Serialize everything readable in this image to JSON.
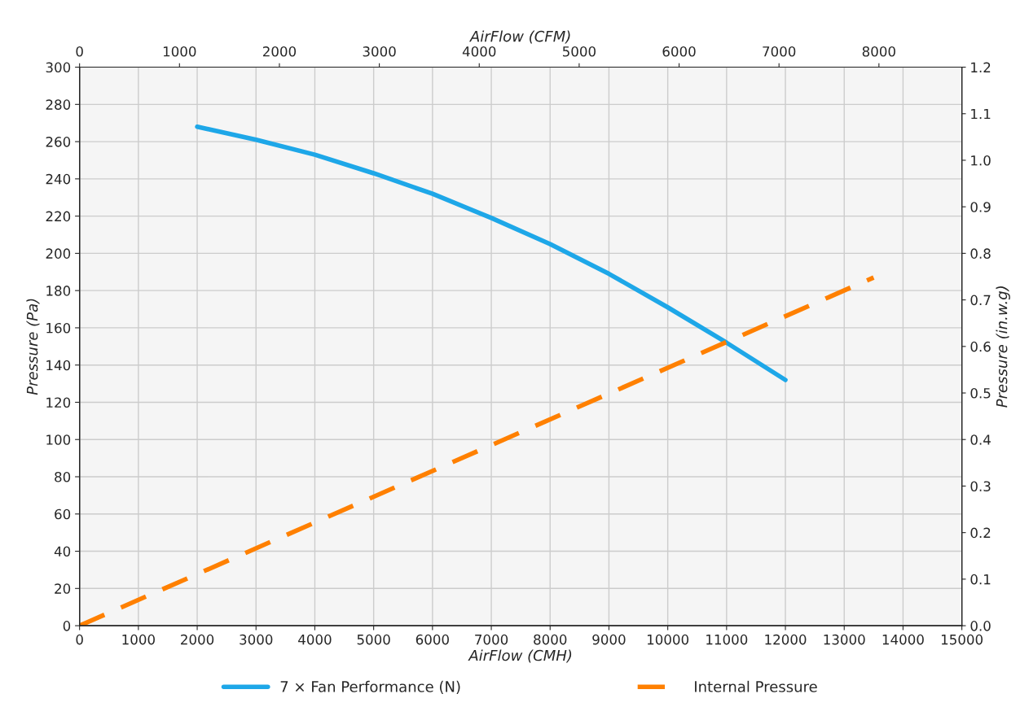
{
  "chart_data": {
    "type": "line",
    "xlabel": "AirFlow (CMH)",
    "ylabel": "Pressure (Pa)",
    "y2label": "Pressure (in.w.g)",
    "x2label": "AirFlow (CFM)",
    "xlim": [
      0,
      15000
    ],
    "xticks": [
      0,
      1000,
      2000,
      3000,
      4000,
      5000,
      6000,
      7000,
      8000,
      9000,
      10000,
      11000,
      12000,
      13000,
      14000,
      15000
    ],
    "ylim": [
      0,
      300
    ],
    "yticks": [
      0,
      20,
      40,
      60,
      80,
      100,
      120,
      140,
      160,
      180,
      200,
      220,
      240,
      260,
      280,
      300
    ],
    "y2lim": [
      0,
      1.2
    ],
    "y2ticks": [
      {
        "value": 0,
        "label": "0.0"
      },
      0.1,
      0.2,
      0.3,
      0.4,
      0.5,
      0.6,
      0.7,
      0.8,
      0.9,
      {
        "value": 1,
        "label": "1.0"
      },
      1.1,
      1.2
    ],
    "x2lim": [
      0,
      8830
    ],
    "x2ticks": [
      0,
      1000,
      2000,
      3000,
      4000,
      5000,
      6000,
      7000,
      8000
    ],
    "grid": true,
    "legend": "bottom",
    "series": [
      {
        "name": "7 × Fan Performance (N)",
        "color": "#1ea7e8",
        "line_style": "solid",
        "x": [
          2000,
          3000,
          4000,
          5000,
          6000,
          7000,
          8000,
          9000,
          10000,
          11000,
          12000
        ],
        "values": [
          268,
          261,
          253,
          243,
          232,
          219,
          205,
          189,
          171,
          152,
          132
        ]
      },
      {
        "name": "Internal Pressure",
        "color": "#ff8000",
        "line_style": "dashed",
        "x": [
          0,
          13500
        ],
        "values": [
          0,
          187
        ]
      }
    ]
  }
}
